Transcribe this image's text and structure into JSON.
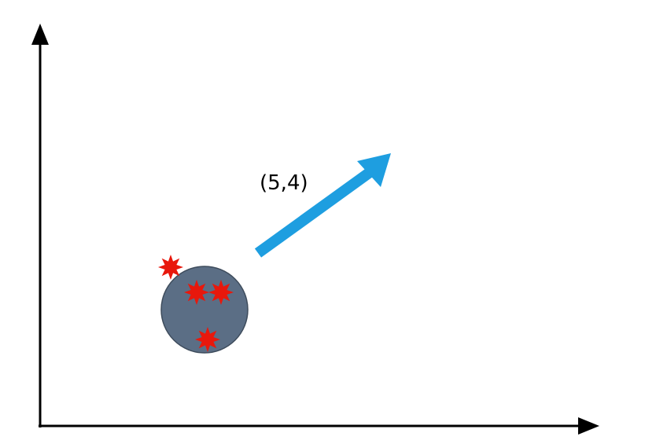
{
  "diagram": {
    "vector_label": "(5,4)",
    "colors": {
      "axis": "#000000",
      "arrow": "#1e9ee0",
      "cluster_fill": "#5b6e85",
      "cluster_stroke": "#3e4c5c",
      "point": "#e8180c",
      "label": "#000000"
    },
    "icons": {
      "point_marker": "eight-point-star-icon"
    },
    "points_inside_cluster": 3,
    "points_outside_cluster": 1
  }
}
